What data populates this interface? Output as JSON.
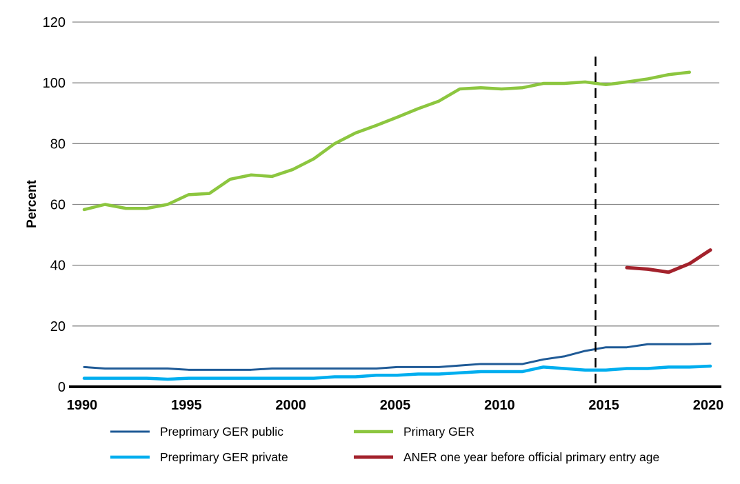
{
  "chart_data": {
    "type": "line",
    "title": "",
    "xlabel": "",
    "ylabel": "Percent",
    "xlim": [
      1990,
      2020
    ],
    "ylim": [
      0,
      120
    ],
    "yticks": [
      0,
      20,
      40,
      60,
      80,
      100,
      120
    ],
    "xticks": [
      1990,
      1995,
      2000,
      2005,
      2010,
      2015,
      2020
    ],
    "grid": "horizontal",
    "legend_position": "bottom",
    "vertical_reference_line": {
      "x": 2014.5,
      "style": "dashed",
      "color": "#000000"
    },
    "series": [
      {
        "name": "Preprimary GER public",
        "color": "#1f5a96",
        "x": [
          1990,
          1991,
          1992,
          1993,
          1994,
          1995,
          1996,
          1997,
          1998,
          1999,
          2000,
          2001,
          2002,
          2003,
          2004,
          2005,
          2006,
          2007,
          2008,
          2009,
          2010,
          2011,
          2012,
          2013,
          2014,
          2015,
          2016,
          2017,
          2018,
          2019,
          2020
        ],
        "values": [
          6.5,
          6,
          6,
          6,
          6,
          5.6,
          5.6,
          5.6,
          5.6,
          6,
          6,
          6,
          6,
          6,
          6,
          6.5,
          6.5,
          6.5,
          7,
          7.5,
          7.5,
          7.5,
          9,
          10,
          11.8,
          13,
          13,
          14,
          14,
          14,
          14.2
        ]
      },
      {
        "name": "Primary GER",
        "color": "#8cc63f",
        "x": [
          1990,
          1991,
          1992,
          1993,
          1994,
          1995,
          1996,
          1997,
          1998,
          1999,
          2000,
          2001,
          2002,
          2003,
          2004,
          2005,
          2006,
          2007,
          2008,
          2009,
          2010,
          2011,
          2012,
          2013,
          2014,
          2015,
          2016,
          2017,
          2018,
          2019
        ],
        "values": [
          58.3,
          60,
          58.7,
          58.7,
          60,
          63.2,
          63.6,
          68.3,
          69.7,
          69.2,
          71.5,
          75,
          80,
          83.5,
          86,
          88.7,
          91.5,
          94,
          98,
          98.4,
          98,
          98.4,
          99.8,
          99.8,
          100.3,
          99.4,
          100.3,
          101.3,
          102.7,
          103.5
        ]
      },
      {
        "name": "Preprimary GER private",
        "color": "#00aeef",
        "x": [
          1990,
          1991,
          1992,
          1993,
          1994,
          1995,
          1996,
          1997,
          1998,
          1999,
          2000,
          2001,
          2002,
          2003,
          2004,
          2005,
          2006,
          2007,
          2008,
          2009,
          2010,
          2011,
          2012,
          2013,
          2014,
          2015,
          2016,
          2017,
          2018,
          2019,
          2020
        ],
        "values": [
          2.8,
          2.8,
          2.8,
          2.8,
          2.5,
          2.8,
          2.8,
          2.8,
          2.8,
          2.8,
          2.8,
          2.8,
          3.3,
          3.3,
          3.8,
          3.8,
          4.2,
          4.2,
          4.6,
          5,
          5,
          5,
          6.5,
          6,
          5.5,
          5.5,
          6,
          6,
          6.5,
          6.5,
          6.8
        ]
      },
      {
        "name": "ANER one year before official primary entry age",
        "color": "#a3222c",
        "x": [
          2016,
          2017,
          2018,
          2019,
          2020
        ],
        "values": [
          39.2,
          38.7,
          37.7,
          40.5,
          45
        ]
      }
    ]
  }
}
